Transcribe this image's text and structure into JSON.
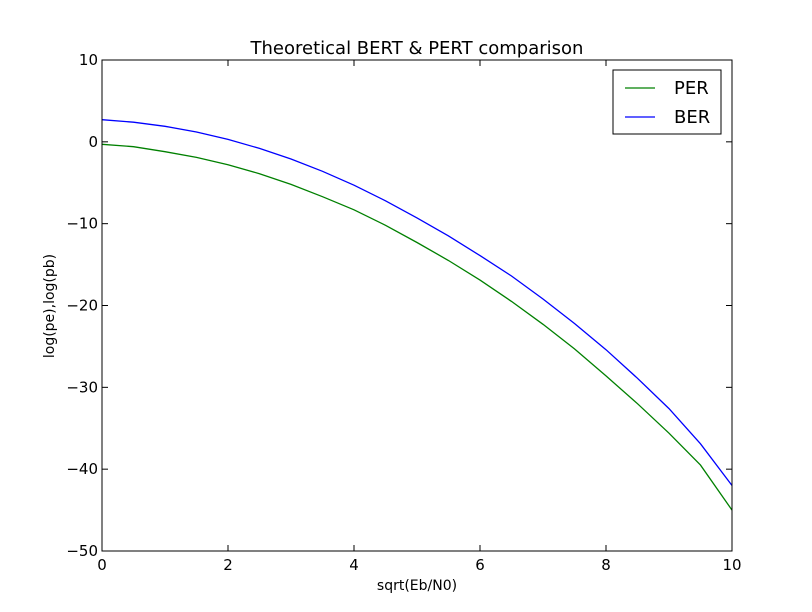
{
  "chart_data": {
    "type": "line",
    "title": "Theoretical BERT & PERT comparison",
    "xlabel": "sqrt(Eb/N0)",
    "ylabel": "log(pe),log(pb)",
    "xlim": [
      0,
      10
    ],
    "ylim": [
      -50,
      10
    ],
    "xticks": [
      0,
      2,
      4,
      6,
      8,
      10
    ],
    "yticks": [
      10,
      0,
      -10,
      -20,
      -30,
      -40,
      -50
    ],
    "xtick_labels": [
      "0",
      "2",
      "4",
      "6",
      "8",
      "10"
    ],
    "ytick_labels": [
      "10",
      "0",
      "−10",
      "−20",
      "−30",
      "−40",
      "−50"
    ],
    "grid": false,
    "legend_position": "top-right",
    "series": [
      {
        "name": "PER",
        "color": "#008000",
        "x": [
          0,
          0.5,
          1,
          1.5,
          2,
          2.5,
          3,
          3.5,
          4,
          4.5,
          5,
          5.5,
          6,
          6.5,
          7,
          7.5,
          8,
          8.5,
          9,
          9.5,
          10
        ],
        "y": [
          -0.3,
          -0.6,
          -1.2,
          -1.9,
          -2.8,
          -3.9,
          -5.2,
          -6.7,
          -8.3,
          -10.2,
          -12.3,
          -14.5,
          -16.9,
          -19.5,
          -22.3,
          -25.3,
          -28.6,
          -32.0,
          -35.6,
          -39.5,
          -45.0
        ]
      },
      {
        "name": "BER",
        "color": "#0000ff",
        "x": [
          0,
          0.5,
          1,
          1.5,
          2,
          2.5,
          3,
          3.5,
          4,
          4.5,
          5,
          5.5,
          6,
          6.5,
          7,
          7.5,
          8,
          8.5,
          9,
          9.5,
          10
        ],
        "y": [
          2.7,
          2.4,
          1.9,
          1.2,
          0.3,
          -0.8,
          -2.1,
          -3.6,
          -5.3,
          -7.2,
          -9.3,
          -11.5,
          -13.9,
          -16.4,
          -19.2,
          -22.2,
          -25.4,
          -28.9,
          -32.6,
          -36.9,
          -42.0
        ]
      }
    ]
  }
}
